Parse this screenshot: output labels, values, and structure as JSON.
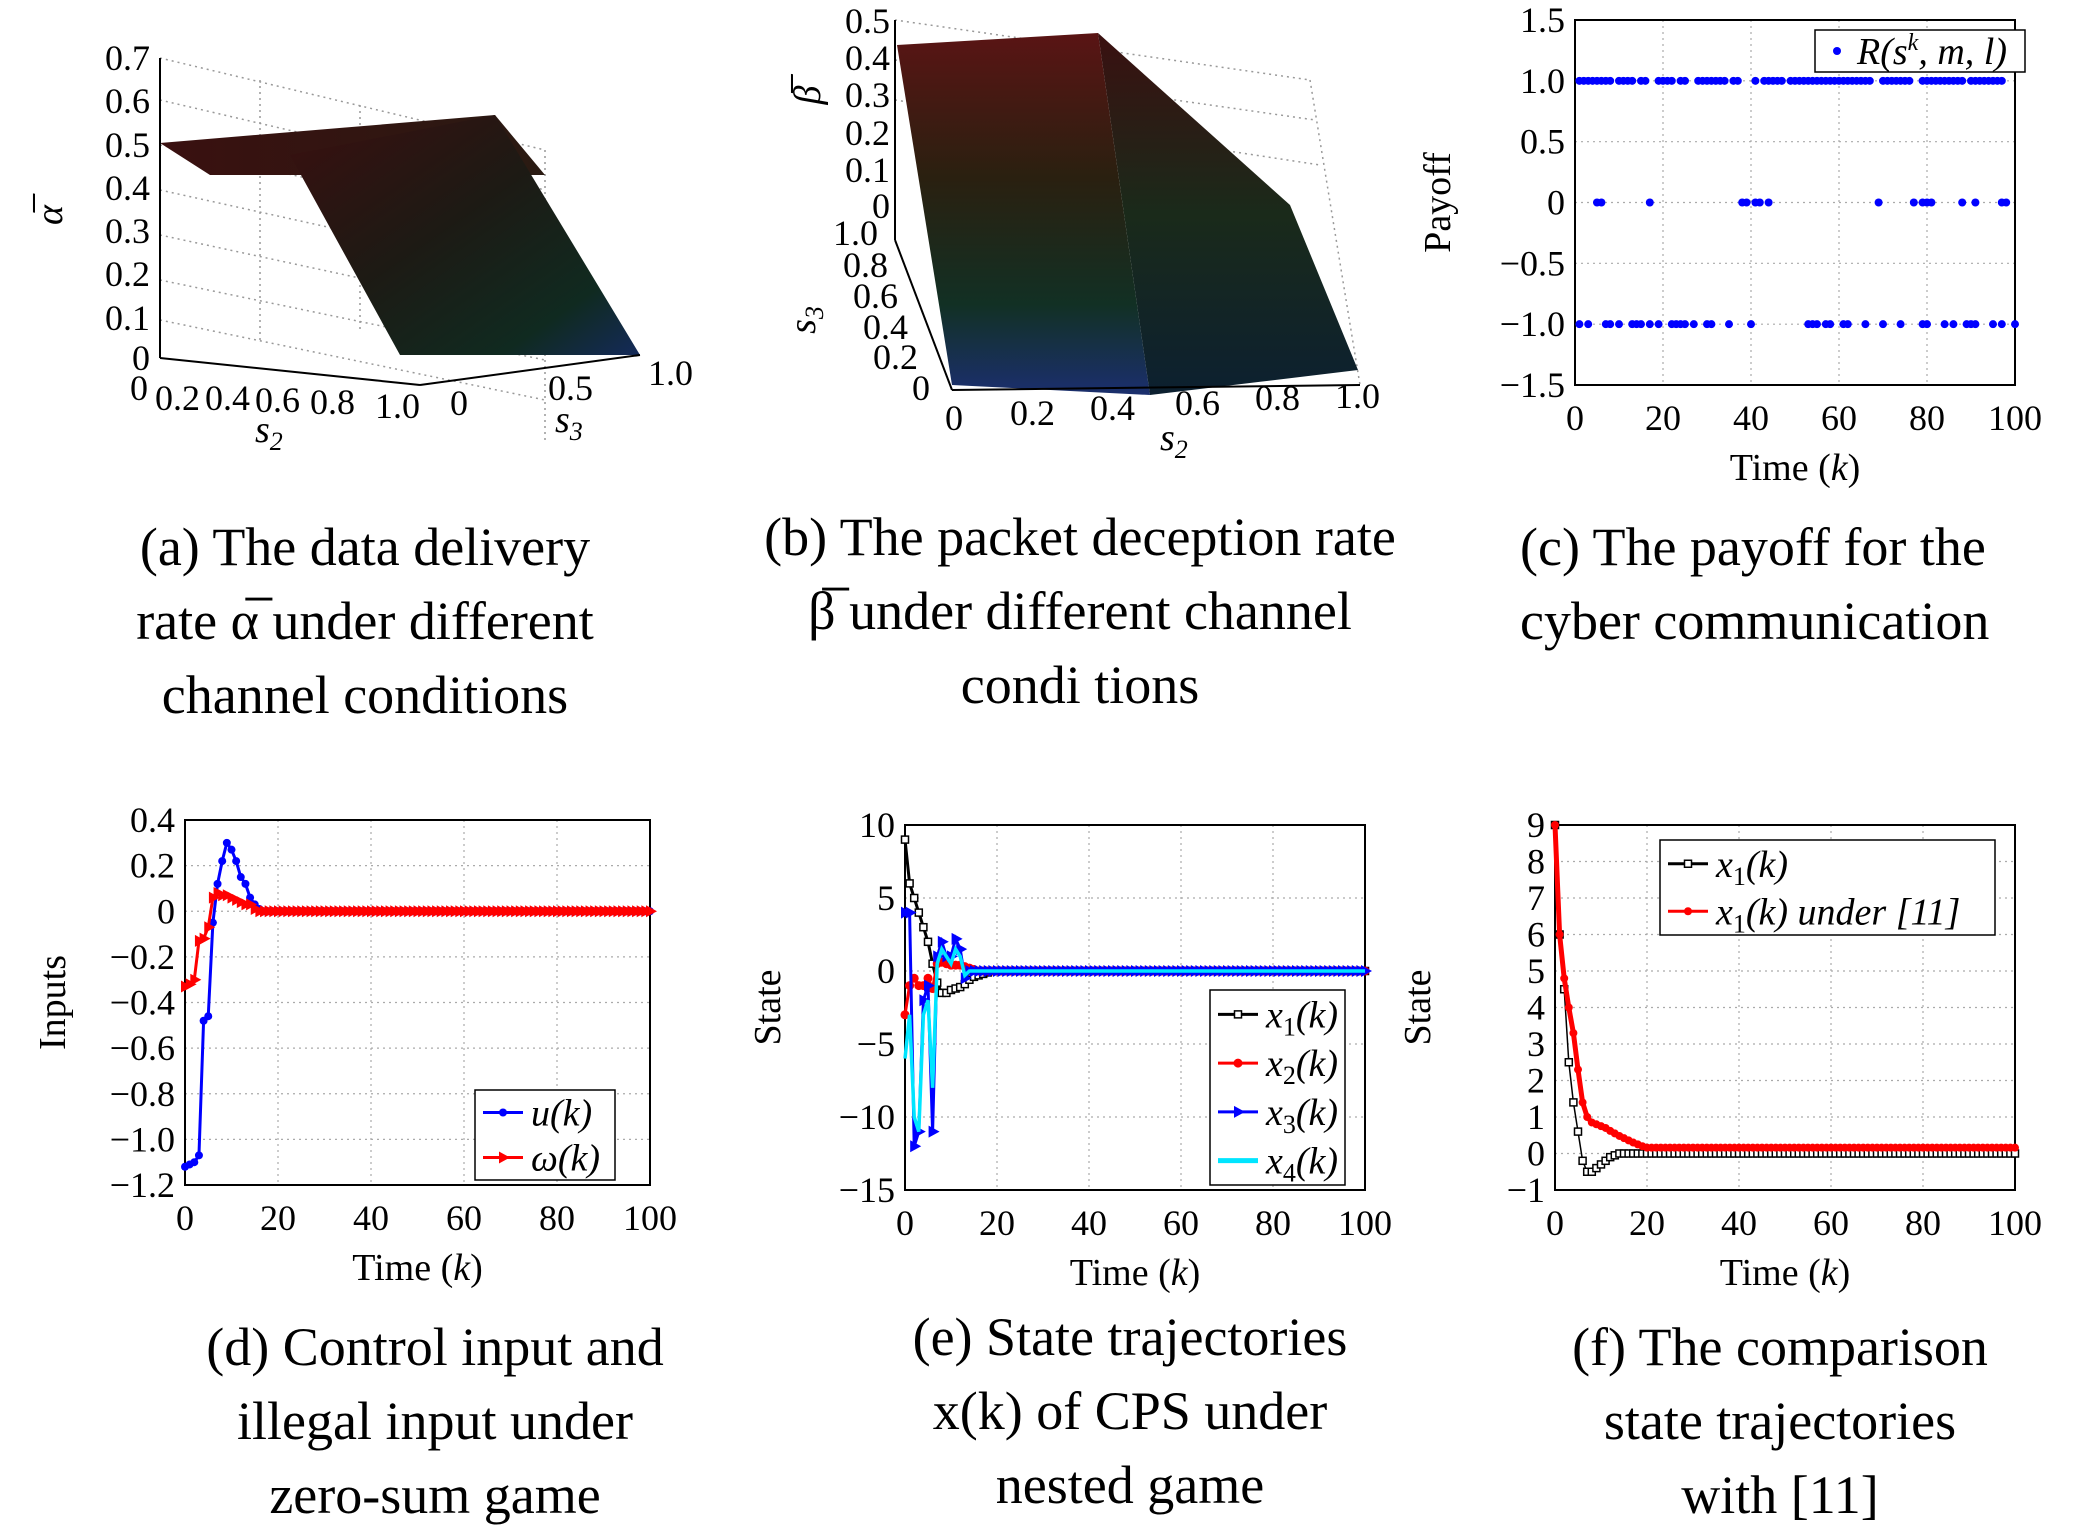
{
  "captions": {
    "a": [
      "(a) The data delivery",
      "rate α̅ under different",
      "channel conditions"
    ],
    "b": [
      "(b) The packet deception rate",
      "β̅ under different channel",
      "condi tions"
    ],
    "c": [
      "(c) The payoff for the",
      "cyber communication"
    ],
    "d": [
      "(d) Control input and",
      "illegal input under",
      "zero-sum game"
    ],
    "e": [
      "(e) State trajectories",
      "x(k) of CPS under",
      "nested game"
    ],
    "f": [
      "(f) The comparison",
      "state trajectories",
      "with [11]"
    ]
  },
  "chart_data": [
    {
      "id": "a",
      "type": "surface3d",
      "zlabel": "α̅",
      "xlabel": "s2",
      "ylabel": "s3",
      "zticks": [
        "0.7",
        "0.6",
        "0.5",
        "0.4",
        "0.3",
        "0.2",
        "0.1",
        "0"
      ],
      "xticks": [
        "0",
        "0.2",
        "0.4",
        "0.6",
        "0.8",
        "1.0"
      ],
      "yticks": [
        "0",
        "0.5",
        "1.0"
      ],
      "description_values": {
        "plateau": 0.5,
        "floor": 0
      }
    },
    {
      "id": "b",
      "type": "surface3d",
      "zlabel": "β̅",
      "xlabel": "s2",
      "ylabel": "s3",
      "zticks": [
        "0.5",
        "0.4",
        "0.3",
        "0.2",
        "0.1",
        "0"
      ],
      "xticks": [
        "0",
        "0.2",
        "0.4",
        "0.6",
        "0.8",
        "1.0"
      ],
      "yticks": [
        "1.0",
        "0.8",
        "0.6",
        "0.4",
        "0.2",
        "0"
      ]
    },
    {
      "id": "c",
      "type": "scatter",
      "xlabel": "Time (k)",
      "ylabel": "Payoff",
      "xlim": [
        0,
        100
      ],
      "ylim": [
        -1.5,
        1.5
      ],
      "xticks": [
        "0",
        "20",
        "40",
        "60",
        "80",
        "100"
      ],
      "yticks": [
        "1.5",
        "1.0",
        "0.5",
        "0",
        "−0.5",
        "−1.0",
        "−1.5"
      ],
      "legend": "R(s^k, m, l)",
      "color": "#0000ff",
      "points": [
        [
          1,
          1
        ],
        [
          2,
          1
        ],
        [
          3,
          1
        ],
        [
          4,
          1
        ],
        [
          5,
          1
        ],
        [
          6,
          1
        ],
        [
          7,
          1
        ],
        [
          8,
          1
        ],
        [
          10,
          1
        ],
        [
          11,
          1
        ],
        [
          12,
          1
        ],
        [
          13,
          1
        ],
        [
          15,
          1
        ],
        [
          16,
          1
        ],
        [
          19,
          1
        ],
        [
          20,
          1
        ],
        [
          21,
          1
        ],
        [
          22,
          1
        ],
        [
          24,
          1
        ],
        [
          25,
          1
        ],
        [
          28,
          1
        ],
        [
          29,
          1
        ],
        [
          30,
          1
        ],
        [
          31,
          1
        ],
        [
          32,
          1
        ],
        [
          33,
          1
        ],
        [
          34,
          1
        ],
        [
          36,
          1
        ],
        [
          37,
          1
        ],
        [
          41,
          1
        ],
        [
          43,
          1
        ],
        [
          44,
          1
        ],
        [
          45,
          1
        ],
        [
          46,
          1
        ],
        [
          47,
          1
        ],
        [
          49,
          1
        ],
        [
          50,
          1
        ],
        [
          51,
          1
        ],
        [
          52,
          1
        ],
        [
          53,
          1
        ],
        [
          54,
          1
        ],
        [
          55,
          1
        ],
        [
          56,
          1
        ],
        [
          57,
          1
        ],
        [
          58,
          1
        ],
        [
          59,
          1
        ],
        [
          60,
          1
        ],
        [
          61,
          1
        ],
        [
          62,
          1
        ],
        [
          63,
          1
        ],
        [
          64,
          1
        ],
        [
          65,
          1
        ],
        [
          66,
          1
        ],
        [
          67,
          1
        ],
        [
          70,
          1
        ],
        [
          71,
          1
        ],
        [
          72,
          1
        ],
        [
          73,
          1
        ],
        [
          74,
          1
        ],
        [
          75,
          1
        ],
        [
          76,
          1
        ],
        [
          79,
          1
        ],
        [
          80,
          1
        ],
        [
          81,
          1
        ],
        [
          82,
          1
        ],
        [
          83,
          1
        ],
        [
          84,
          1
        ],
        [
          85,
          1
        ],
        [
          86,
          1
        ],
        [
          87,
          1
        ],
        [
          88,
          1
        ],
        [
          90,
          1
        ],
        [
          91,
          1
        ],
        [
          92,
          1
        ],
        [
          93,
          1
        ],
        [
          94,
          1
        ],
        [
          95,
          1
        ],
        [
          96,
          1
        ],
        [
          97,
          1
        ],
        [
          5,
          0
        ],
        [
          6,
          0
        ],
        [
          17,
          0
        ],
        [
          38,
          0
        ],
        [
          39,
          0
        ],
        [
          41,
          0
        ],
        [
          42,
          0
        ],
        [
          44,
          0
        ],
        [
          69,
          0
        ],
        [
          77,
          0
        ],
        [
          79,
          0
        ],
        [
          80,
          0
        ],
        [
          81,
          0
        ],
        [
          88,
          0
        ],
        [
          91,
          0
        ],
        [
          97,
          0
        ],
        [
          98,
          0
        ],
        [
          1,
          -1
        ],
        [
          3,
          -1
        ],
        [
          7,
          -1
        ],
        [
          8,
          -1
        ],
        [
          10,
          -1
        ],
        [
          13,
          -1
        ],
        [
          14,
          -1
        ],
        [
          15,
          -1
        ],
        [
          17,
          -1
        ],
        [
          19,
          -1
        ],
        [
          22,
          -1
        ],
        [
          23,
          -1
        ],
        [
          24,
          -1
        ],
        [
          25,
          -1
        ],
        [
          27,
          -1
        ],
        [
          30,
          -1
        ],
        [
          31,
          -1
        ],
        [
          35,
          -1
        ],
        [
          40,
          -1
        ],
        [
          53,
          -1
        ],
        [
          54,
          -1
        ],
        [
          55,
          -1
        ],
        [
          57,
          -1
        ],
        [
          58,
          -1
        ],
        [
          61,
          -1
        ],
        [
          62,
          -1
        ],
        [
          66,
          -1
        ],
        [
          70,
          -1
        ],
        [
          74,
          -1
        ],
        [
          79,
          -1
        ],
        [
          80,
          -1
        ],
        [
          84,
          -1
        ],
        [
          86,
          -1
        ],
        [
          89,
          -1
        ],
        [
          90,
          -1
        ],
        [
          91,
          -1
        ],
        [
          95,
          -1
        ],
        [
          97,
          -1
        ],
        [
          100,
          -1
        ]
      ]
    },
    {
      "id": "d",
      "type": "line",
      "xlabel": "Time (k)",
      "ylabel": "Inputs",
      "xlim": [
        0,
        100
      ],
      "ylim": [
        -1.2,
        0.4
      ],
      "xticks": [
        "0",
        "20",
        "40",
        "60",
        "80",
        "100"
      ],
      "yticks": [
        "0.4",
        "0.2",
        "0",
        "−0.2",
        "−0.4",
        "−0.6",
        "−0.8",
        "−1.0",
        "−1.2"
      ],
      "x": [
        0,
        1,
        2,
        3,
        4,
        5,
        6,
        7,
        8,
        9,
        10,
        11,
        12,
        13,
        14,
        15,
        16,
        17,
        18,
        19,
        20
      ],
      "series": [
        {
          "name": "u(k)",
          "color": "#0000ff",
          "values": [
            -1.12,
            -1.11,
            -1.1,
            -1.07,
            -0.48,
            -0.46,
            -0.05,
            0.12,
            0.22,
            0.3,
            0.27,
            0.22,
            0.15,
            0.12,
            0.06,
            0.03,
            0.01,
            0.0,
            0.0,
            0.0,
            0.0
          ]
        },
        {
          "name": "ω(k)",
          "color": "#ff0000",
          "values": [
            -0.33,
            -0.32,
            -0.3,
            -0.13,
            -0.12,
            -0.07,
            0.06,
            0.08,
            0.07,
            0.07,
            0.06,
            0.05,
            0.04,
            0.03,
            0.03,
            0.01,
            0.0,
            0.0,
            0.0,
            0.0,
            0.0
          ]
        }
      ]
    },
    {
      "id": "e",
      "type": "line",
      "xlabel": "Time (k)",
      "ylabel": "State",
      "xlim": [
        0,
        100
      ],
      "ylim": [
        -15,
        10
      ],
      "xticks": [
        "0",
        "20",
        "40",
        "60",
        "80",
        "100"
      ],
      "yticks": [
        "10",
        "5",
        "0",
        "−5",
        "−10",
        "−15"
      ],
      "x": [
        0,
        1,
        2,
        3,
        4,
        5,
        6,
        7,
        8,
        9,
        10,
        11,
        12,
        13,
        14,
        15,
        16,
        17,
        18,
        19,
        20
      ],
      "series": [
        {
          "name": "x1(k)",
          "color": "#000000",
          "values": [
            9,
            6,
            5,
            4,
            3,
            2,
            0.5,
            -0.8,
            -1.5,
            -1.5,
            -1.3,
            -1.2,
            -1.1,
            -0.9,
            -0.6,
            -0.4,
            -0.3,
            -0.2,
            -0.1,
            0,
            0
          ]
        },
        {
          "name": "x2(k)",
          "color": "#ff0000",
          "values": [
            -3,
            -1,
            -0.5,
            -1,
            -1,
            -0.5,
            -1.2,
            0.5,
            0.6,
            0.5,
            0.4,
            0.4,
            0.4,
            0.3,
            0.2,
            0.1,
            0,
            0,
            0,
            0,
            0
          ]
        },
        {
          "name": "x3(k)",
          "color": "#0000ff",
          "values": [
            4,
            4,
            -12,
            -11,
            -2,
            -1,
            -11,
            1,
            2,
            1,
            1,
            2.2,
            1.5,
            -0.5,
            0,
            0,
            0,
            0,
            0,
            0,
            0
          ]
        },
        {
          "name": "x4(k)",
          "color": "#00e5ff",
          "values": [
            -6,
            -3,
            -10,
            -11,
            -3,
            -2,
            -8,
            0.5,
            1.5,
            1,
            0.5,
            1.5,
            1,
            -0.3,
            0,
            0,
            0,
            0,
            0,
            0,
            0
          ]
        }
      ]
    },
    {
      "id": "f",
      "type": "line",
      "xlabel": "Time (k)",
      "ylabel": "State",
      "xlim": [
        0,
        100
      ],
      "ylim": [
        -1,
        9
      ],
      "xticks": [
        "0",
        "20",
        "40",
        "60",
        "80",
        "100"
      ],
      "yticks": [
        "9",
        "8",
        "7",
        "6",
        "5",
        "4",
        "3",
        "2",
        "1",
        "0",
        "−1"
      ],
      "x": [
        0,
        1,
        2,
        3,
        4,
        5,
        6,
        7,
        8,
        9,
        10,
        11,
        12,
        13,
        14,
        15,
        16,
        17,
        18,
        19,
        20
      ],
      "series": [
        {
          "name": "x1(k)",
          "color": "#000000",
          "values": [
            9,
            6,
            4.5,
            2.5,
            1.4,
            0.6,
            -0.2,
            -0.5,
            -0.5,
            -0.4,
            -0.3,
            -0.2,
            -0.1,
            -0.05,
            0,
            0,
            0,
            0,
            0,
            0,
            0
          ]
        },
        {
          "name": "x1(k) under [11]",
          "color": "#ff0000",
          "values": [
            9,
            6,
            4.8,
            4,
            3.3,
            2.3,
            1.4,
            1.0,
            0.85,
            0.8,
            0.75,
            0.7,
            0.62,
            0.55,
            0.48,
            0.42,
            0.36,
            0.3,
            0.25,
            0.2,
            0.16
          ]
        }
      ]
    }
  ]
}
